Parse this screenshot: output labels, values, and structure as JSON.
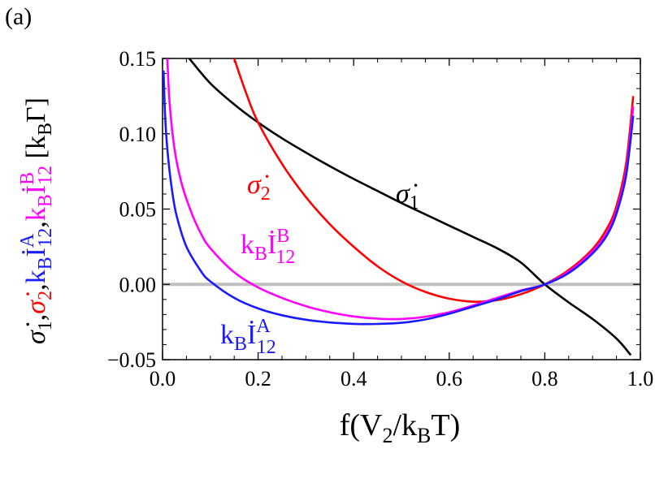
{
  "panel_label": "(a)",
  "colors": {
    "sigma1": "#000000",
    "sigma2": "#ff0000",
    "iA": "#1a1aff",
    "iB": "#ff00ff",
    "zero_line": "#c0c0c0",
    "axis": "#000000"
  },
  "chart_data": {
    "type": "line",
    "title": "",
    "xlabel": "f(V2/kBT)",
    "ylabel": "σ̇1, σ̇2, kB İ12A, kB İ12B [kB Γ]",
    "xlim": [
      0.0,
      1.0
    ],
    "ylim": [
      -0.05,
      0.15
    ],
    "x_ticks": [
      0.0,
      0.2,
      0.4,
      0.6,
      0.8,
      1.0
    ],
    "x_tick_labels": [
      "0.0",
      "0.2",
      "0.4",
      "0.6",
      "0.8",
      "1.0"
    ],
    "y_ticks": [
      -0.05,
      0.0,
      0.05,
      0.1,
      0.15
    ],
    "y_tick_labels": [
      "−0.05",
      "0.00",
      "0.05",
      "0.10",
      "0.15"
    ],
    "reference_line_y": 0.0,
    "grid": false,
    "series": [
      {
        "name": "σ̇1",
        "color": "#000000",
        "x": [
          0.056,
          0.1,
          0.15,
          0.2,
          0.25,
          0.3,
          0.35,
          0.4,
          0.45,
          0.5,
          0.55,
          0.6,
          0.65,
          0.7,
          0.75,
          0.8,
          0.85,
          0.9,
          0.95,
          0.98
        ],
        "y": [
          0.15,
          0.1335,
          0.1195,
          0.1075,
          0.097,
          0.0875,
          0.0785,
          0.07,
          0.062,
          0.054,
          0.0465,
          0.039,
          0.0315,
          0.024,
          0.0145,
          0.0,
          -0.012,
          -0.023,
          -0.036,
          -0.047
        ]
      },
      {
        "name": "σ̇2",
        "color": "#ff0000",
        "x": [
          0.15,
          0.175,
          0.2,
          0.25,
          0.3,
          0.35,
          0.4,
          0.45,
          0.5,
          0.55,
          0.6,
          0.65,
          0.7,
          0.75,
          0.8,
          0.85,
          0.9,
          0.93,
          0.95,
          0.97,
          0.985
        ],
        "y": [
          0.15,
          0.127,
          0.1075,
          0.08,
          0.058,
          0.04,
          0.025,
          0.012,
          0.002,
          -0.005,
          -0.0095,
          -0.0115,
          -0.0105,
          -0.0065,
          0.0,
          0.0095,
          0.0235,
          0.037,
          0.052,
          0.08,
          0.125
        ]
      },
      {
        "name": "kB İ12B",
        "color": "#ff00ff",
        "x": [
          0.01,
          0.015,
          0.025,
          0.04,
          0.06,
          0.08,
          0.1,
          0.15,
          0.2,
          0.25,
          0.3,
          0.35,
          0.4,
          0.45,
          0.5,
          0.55,
          0.6,
          0.65,
          0.7,
          0.75,
          0.8,
          0.85,
          0.9,
          0.93,
          0.95,
          0.97,
          0.985
        ],
        "y": [
          0.15,
          0.12,
          0.09,
          0.067,
          0.048,
          0.034,
          0.024,
          0.008,
          -0.002,
          -0.009,
          -0.0145,
          -0.0185,
          -0.0213,
          -0.0228,
          -0.023,
          -0.0215,
          -0.0185,
          -0.014,
          -0.009,
          -0.004,
          0.0,
          0.0085,
          0.022,
          0.034,
          0.049,
          0.075,
          0.118
        ]
      },
      {
        "name": "kB İ12A",
        "color": "#1a1aff",
        "x": [
          0.002,
          0.005,
          0.01,
          0.02,
          0.03,
          0.05,
          0.08,
          0.1,
          0.15,
          0.2,
          0.25,
          0.3,
          0.35,
          0.4,
          0.45,
          0.5,
          0.55,
          0.6,
          0.65,
          0.7,
          0.75,
          0.8,
          0.85,
          0.9,
          0.93,
          0.95,
          0.97,
          0.985
        ],
        "y": [
          0.142,
          0.115,
          0.09,
          0.062,
          0.045,
          0.025,
          0.009,
          0.002,
          -0.009,
          -0.016,
          -0.0205,
          -0.0235,
          -0.0253,
          -0.0262,
          -0.0263,
          -0.0255,
          -0.0233,
          -0.0195,
          -0.0148,
          -0.01,
          -0.0045,
          0.0,
          0.0075,
          0.0205,
          0.0325,
          0.047,
          0.072,
          0.112
        ]
      }
    ],
    "annotations": [
      {
        "series": "σ̇2",
        "x": 0.19,
        "y": 0.068
      },
      {
        "series": "σ̇1",
        "x": 0.49,
        "y": 0.06
      },
      {
        "series": "kB İ12B",
        "x": 0.16,
        "y": 0.026
      },
      {
        "series": "kB İ12A",
        "x": 0.11,
        "y": -0.033
      }
    ]
  }
}
